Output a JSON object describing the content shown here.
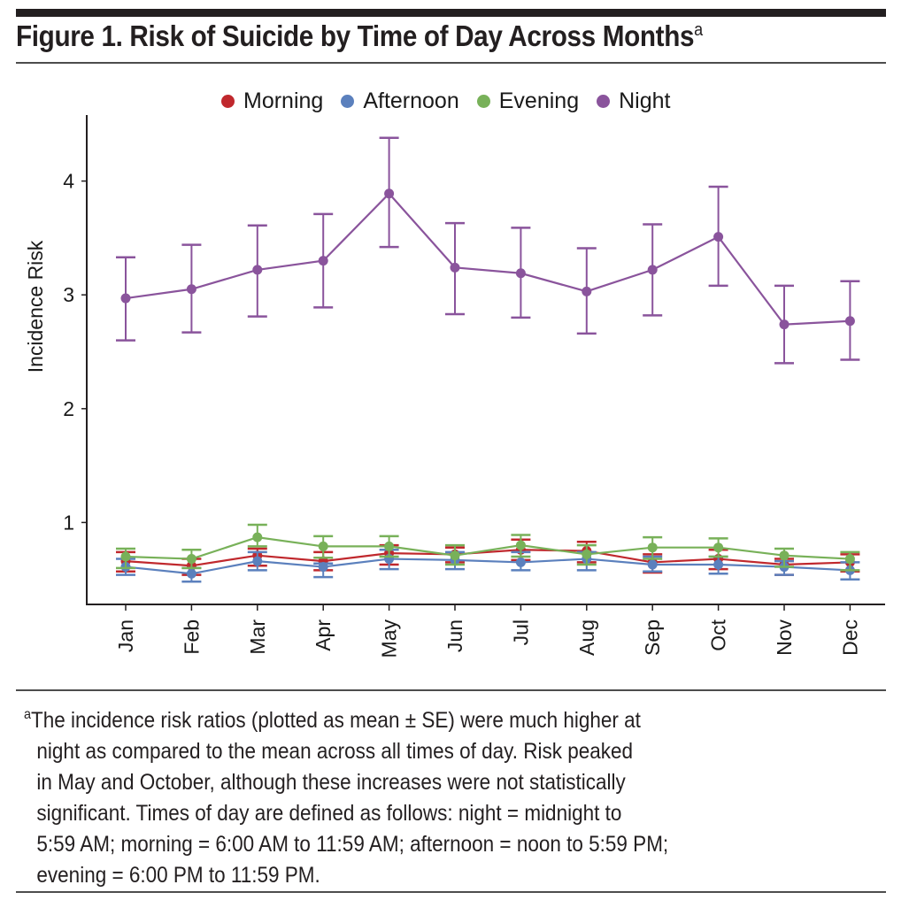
{
  "figure": {
    "title": "Figure 1. Risk of Suicide by Time of Day Across Months",
    "title_superscript": "a",
    "footnote": {
      "marker": "a",
      "lines": [
        "The incidence risk ratios (plotted as mean ± SE) were much higher at",
        "night as compared to the mean across all times of day. Risk peaked",
        "in May and October, although these increases were not statistically",
        "significant. Times of day are defined as follows: night = midnight to",
        "5:59 AM; morning = 6:00 AM to 11:59 AM; afternoon = noon to 5:59 PM;",
        "evening = 6:00 PM to 11:59 PM."
      ]
    }
  },
  "chart_data": {
    "type": "line",
    "title": "Risk of Suicide by Time of Day Across Months",
    "xlabel": "",
    "ylabel": "Incidence Risk",
    "ylim": [
      0.28,
      4.58
    ],
    "yticks": [
      1,
      2,
      3,
      4
    ],
    "grid": false,
    "legend_position": "top-center",
    "error_bars": "mean ± SE",
    "categories": [
      "Jan",
      "Feb",
      "Mar",
      "Apr",
      "May",
      "Jun",
      "Jul",
      "Aug",
      "Sep",
      "Oct",
      "Nov",
      "Dec"
    ],
    "series": [
      {
        "name": "Morning",
        "color": "#c0282d",
        "values": [
          0.66,
          0.62,
          0.71,
          0.66,
          0.73,
          0.72,
          0.76,
          0.75,
          0.65,
          0.68,
          0.63,
          0.65
        ],
        "upper": [
          0.74,
          0.68,
          0.77,
          0.74,
          0.8,
          0.78,
          0.85,
          0.83,
          0.72,
          0.76,
          0.68,
          0.72
        ],
        "lower": [
          0.57,
          0.54,
          0.62,
          0.58,
          0.63,
          0.65,
          0.67,
          0.65,
          0.56,
          0.59,
          0.54,
          0.57
        ]
      },
      {
        "name": "Afternoon",
        "color": "#5b80bd",
        "values": [
          0.61,
          0.55,
          0.66,
          0.61,
          0.68,
          0.67,
          0.65,
          0.68,
          0.63,
          0.63,
          0.61,
          0.58
        ],
        "upper": [
          0.68,
          0.6,
          0.74,
          0.64,
          0.76,
          0.74,
          0.74,
          0.74,
          0.7,
          0.7,
          0.66,
          0.65
        ],
        "lower": [
          0.54,
          0.48,
          0.58,
          0.52,
          0.59,
          0.59,
          0.58,
          0.58,
          0.57,
          0.55,
          0.54,
          0.5
        ]
      },
      {
        "name": "Evening",
        "color": "#78b159",
        "values": [
          0.7,
          0.68,
          0.87,
          0.79,
          0.79,
          0.71,
          0.8,
          0.72,
          0.78,
          0.78,
          0.71,
          0.68
        ],
        "upper": [
          0.77,
          0.76,
          0.98,
          0.88,
          0.88,
          0.8,
          0.89,
          0.8,
          0.87,
          0.86,
          0.77,
          0.74
        ],
        "lower": [
          0.6,
          0.6,
          0.79,
          0.69,
          0.7,
          0.63,
          0.7,
          0.63,
          0.68,
          0.7,
          0.61,
          0.58
        ]
      },
      {
        "name": "Night",
        "color": "#8a549c",
        "values": [
          2.97,
          3.05,
          3.22,
          3.3,
          3.89,
          3.24,
          3.19,
          3.03,
          3.22,
          3.51,
          2.74,
          2.77
        ],
        "upper": [
          3.33,
          3.44,
          3.61,
          3.71,
          4.38,
          3.63,
          3.59,
          3.41,
          3.62,
          3.95,
          3.08,
          3.12
        ],
        "lower": [
          2.6,
          2.67,
          2.81,
          2.89,
          3.42,
          2.83,
          2.8,
          2.66,
          2.82,
          3.08,
          2.4,
          2.43
        ]
      }
    ]
  }
}
